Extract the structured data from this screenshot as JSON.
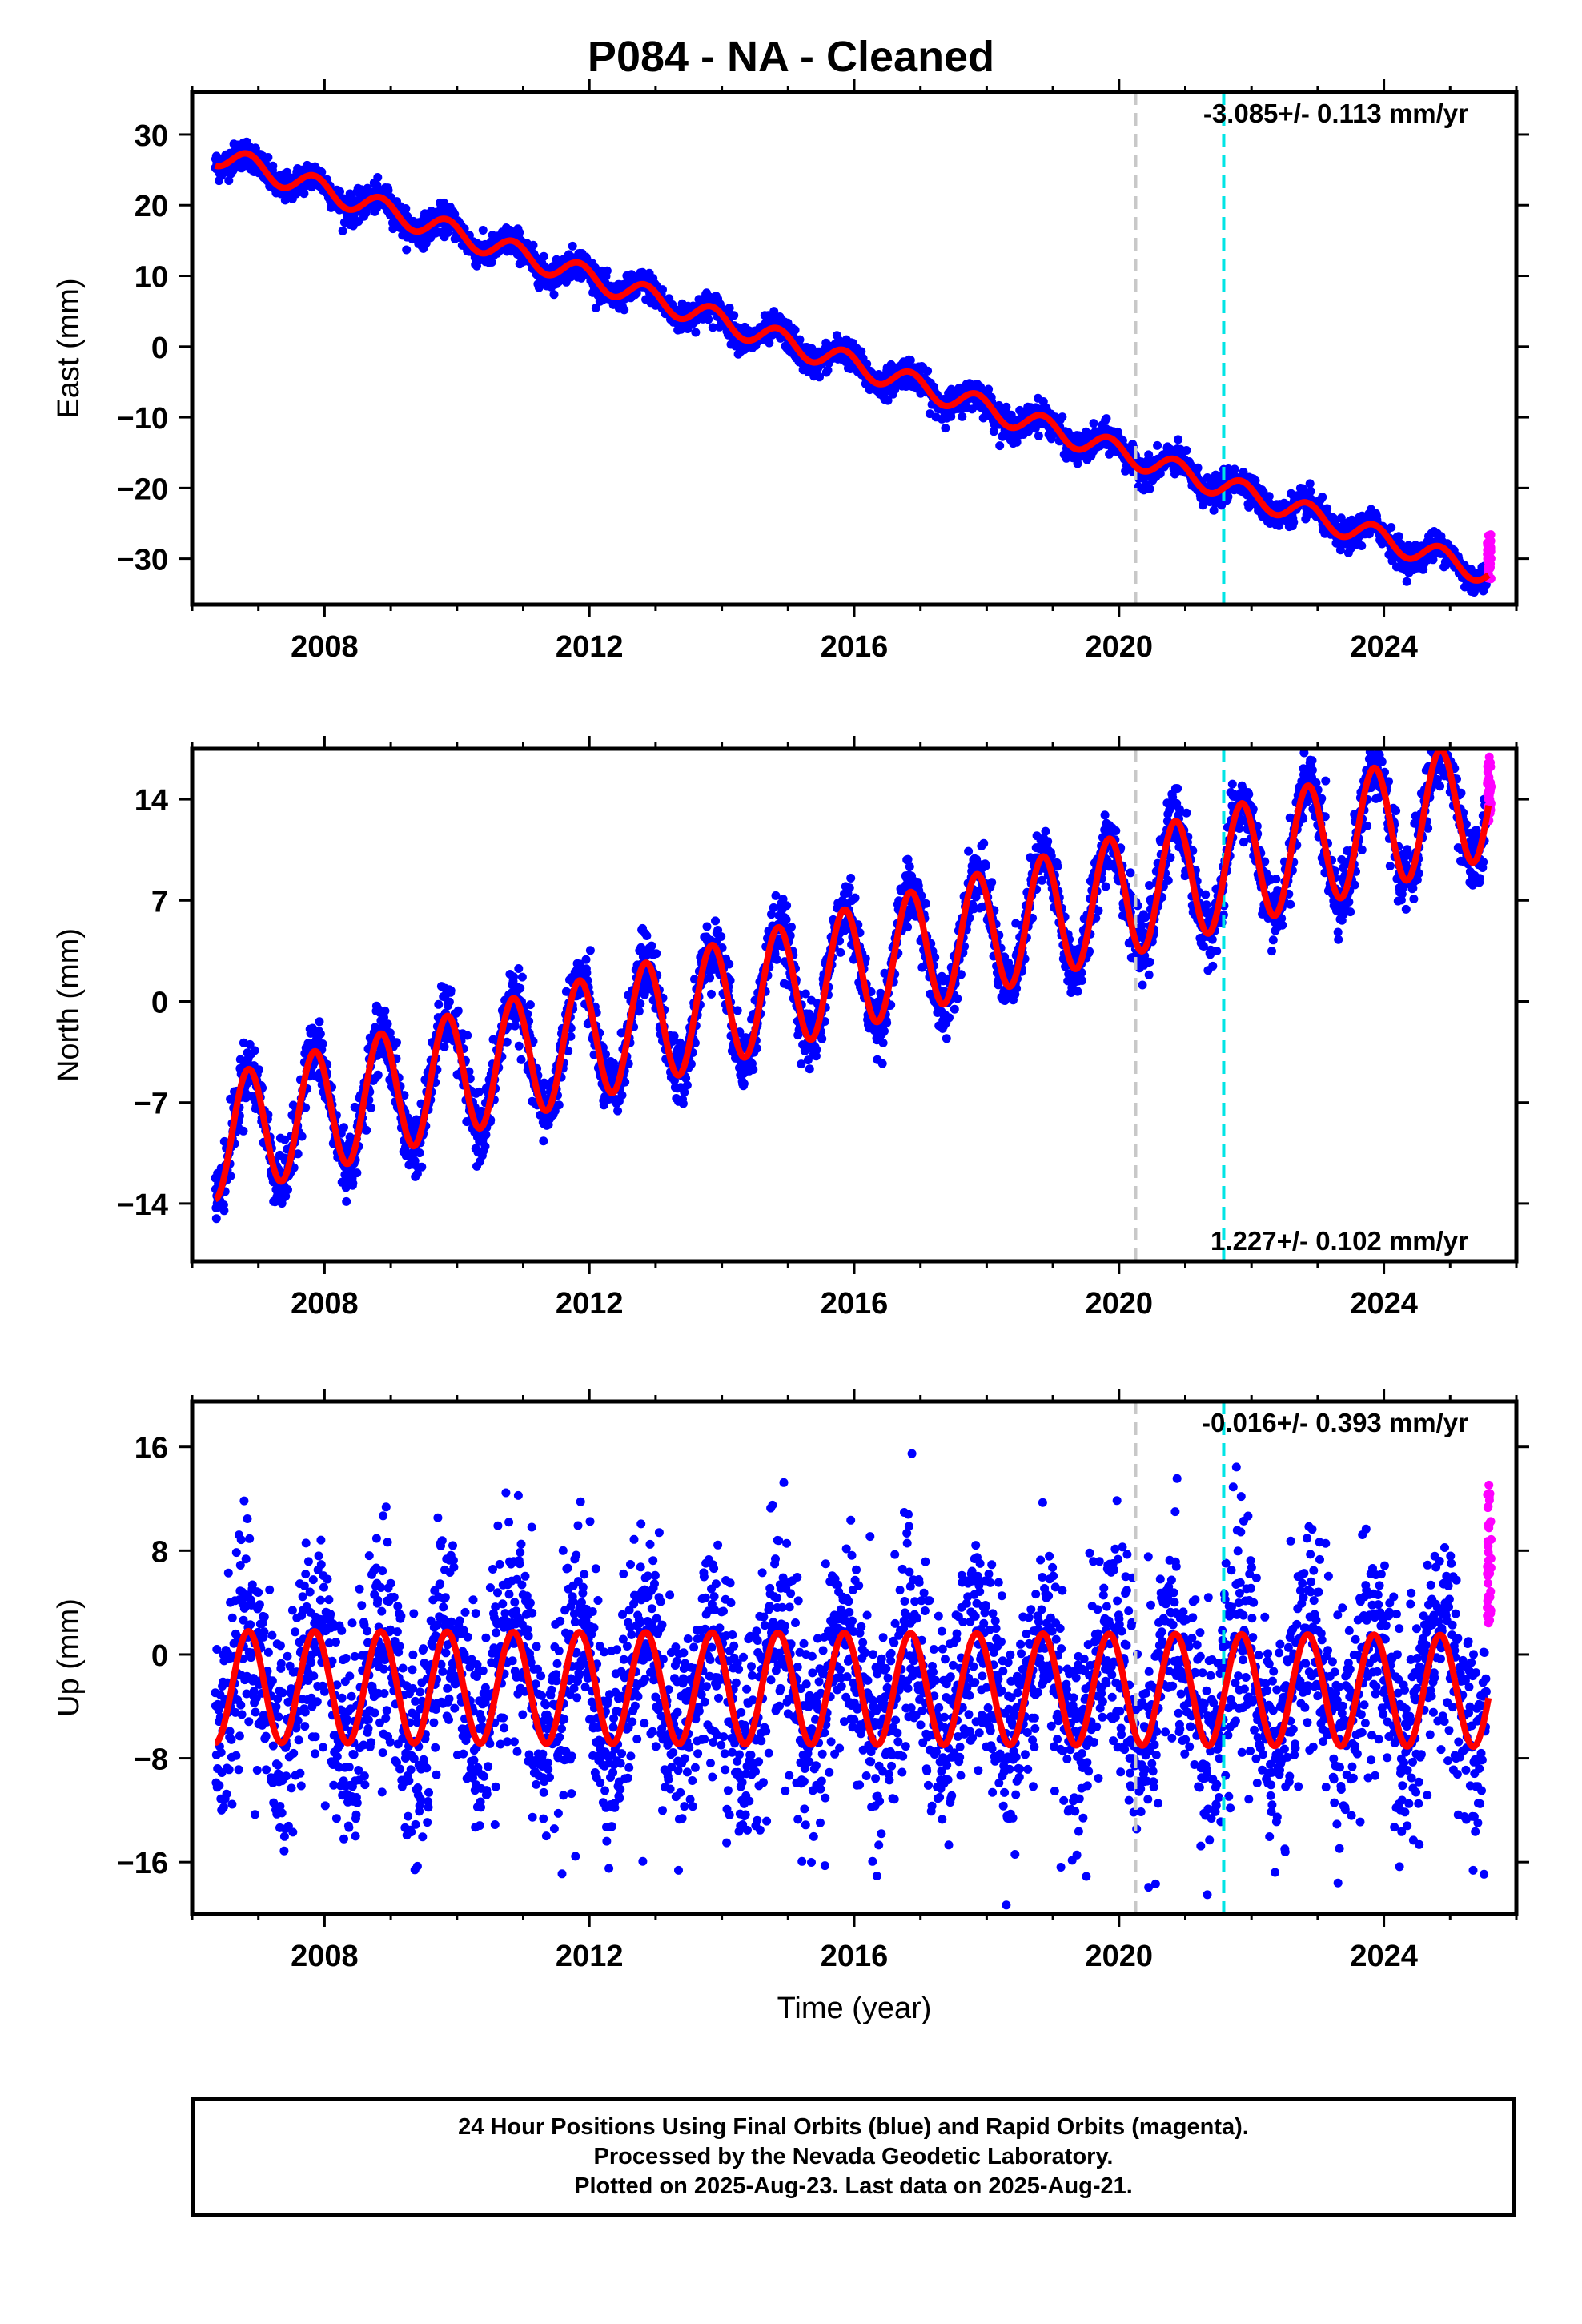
{
  "title": "P084  - NA - Cleaned",
  "colors": {
    "final_orbits": "#0000ff",
    "rapid_orbits": "#ff00ff",
    "model": "#ff0000",
    "grey_line": "#c8c8c8",
    "cyan_line": "#00e5e5"
  },
  "chart_data": [
    {
      "type": "scatter",
      "ylabel": "East (mm)",
      "xlim": [
        2006.0,
        2026.0
      ],
      "ylim": [
        -36.5,
        36.0
      ],
      "x_ticks": [
        2008,
        2012,
        2016,
        2020,
        2024
      ],
      "y_ticks": [
        30,
        20,
        10,
        0,
        -10,
        -20,
        -30
      ],
      "rate_label": "-3.085+/- 0.113 mm/yr",
      "rate_label_position": "top-right",
      "vertical_lines": [
        {
          "x": 2020.25,
          "color": "grey"
        },
        {
          "x": 2021.58,
          "color": "cyan"
        }
      ],
      "model": {
        "start": [
          2006.35,
          27.2
        ],
        "rate": -3.085,
        "amplitude": 1.6,
        "phase": 2006.6
      },
      "rapid_range": [
        -33.0,
        -26.5
      ],
      "data_range": [
        2006.35,
        2025.55
      ]
    },
    {
      "type": "scatter",
      "ylabel": "North (mm)",
      "xlim": [
        2006.0,
        2026.0
      ],
      "ylim": [
        -18.0,
        17.5
      ],
      "x_ticks": [
        2008,
        2012,
        2016,
        2020,
        2024
      ],
      "y_ticks": [
        14,
        7,
        0,
        -7,
        -14
      ],
      "rate_label": "1.227+/- 0.102 mm/yr",
      "rate_label_position": "bottom-right",
      "vertical_lines": [
        {
          "x": 2020.25,
          "color": "grey"
        },
        {
          "x": 2021.58,
          "color": "cyan"
        }
      ],
      "model": {
        "start": [
          2006.35,
          -9.5
        ],
        "rate": 1.227,
        "amplitude": 4.2,
        "phase": 2006.6
      },
      "rapid_range": [
        12.5,
        17.0
      ],
      "data_range": [
        2006.35,
        2025.55
      ]
    },
    {
      "type": "scatter",
      "ylabel": "Up (mm)",
      "xlabel": "Time (year)",
      "xlim": [
        2006.0,
        2026.0
      ],
      "ylim": [
        -20.0,
        19.5
      ],
      "x_ticks": [
        2008,
        2012,
        2016,
        2020,
        2024
      ],
      "y_ticks": [
        16,
        8,
        0,
        -8,
        -16
      ],
      "rate_label": "-0.016+/- 0.393 mm/yr",
      "rate_label_position": "top-right",
      "vertical_lines": [
        {
          "x": 2020.25,
          "color": "grey"
        },
        {
          "x": 2021.58,
          "color": "cyan"
        }
      ],
      "model": {
        "start": [
          2006.35,
          -2.5
        ],
        "rate": -0.016,
        "amplitude": 4.3,
        "phase": 2006.6
      },
      "rapid_range": [
        2.0,
        14.0
      ],
      "data_range": [
        2006.35,
        2025.55
      ]
    }
  ],
  "footer": {
    "line1": "24 Hour Positions Using Final Orbits (blue) and Rapid Orbits (magenta).",
    "line2": "Processed by the Nevada Geodetic Laboratory.",
    "line3": "Plotted on 2025-Aug-23. Last data on 2025-Aug-21."
  }
}
